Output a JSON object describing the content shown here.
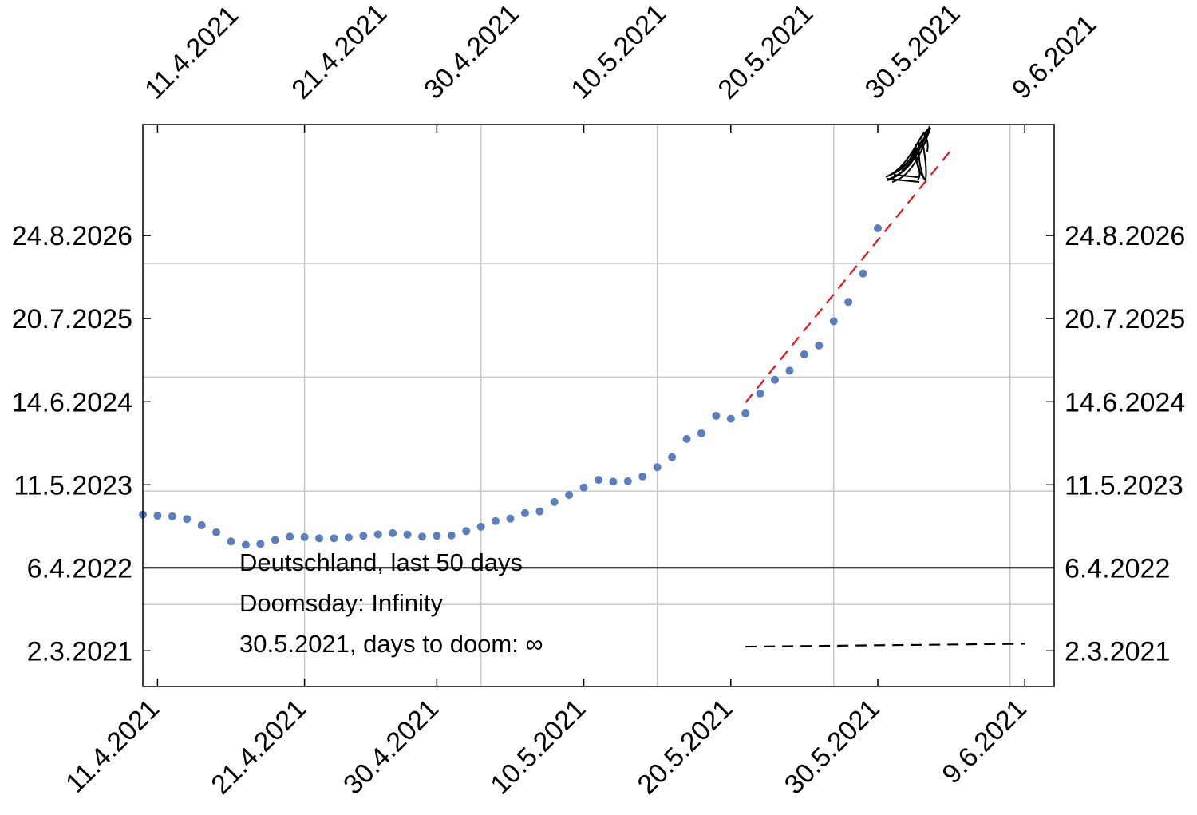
{
  "chart_data": {
    "type": "scatter",
    "title": "",
    "xlabel": "",
    "ylabel": "",
    "x_axis": {
      "min": "2021-04-10",
      "max": "2021-06-11",
      "ticks": [
        {
          "date": "2021-04-11",
          "label": "11.4.2021"
        },
        {
          "date": "2021-04-21",
          "label": "21.4.2021"
        },
        {
          "date": "2021-04-30",
          "label": "30.4.2021"
        },
        {
          "date": "2021-05-10",
          "label": "10.5.2021"
        },
        {
          "date": "2021-05-20",
          "label": "20.5.2021"
        },
        {
          "date": "2021-05-30",
          "label": "30.5.2021"
        },
        {
          "date": "2021-06-09",
          "label": "9.6.2021"
        }
      ]
    },
    "y_axis": {
      "min": "2020-09-11",
      "max": "2028-02-10",
      "ticks": [
        {
          "date": "2021-03-02",
          "label": "2.3.2021"
        },
        {
          "date": "2022-04-06",
          "label": "6.4.2022"
        },
        {
          "date": "2023-05-11",
          "label": "11.5.2023"
        },
        {
          "date": "2024-06-14",
          "label": "14.6.2024"
        },
        {
          "date": "2025-07-20",
          "label": "20.7.2025"
        },
        {
          "date": "2026-08-24",
          "label": "24.8.2026"
        }
      ]
    },
    "grid": true,
    "series": [
      {
        "type": "scatter",
        "color": "#5b7fbd",
        "points": [
          {
            "x": "2021-04-10",
            "y": "2022-12-18"
          },
          {
            "x": "2021-04-11",
            "y": "2022-12-13"
          },
          {
            "x": "2021-04-12",
            "y": "2022-12-10"
          },
          {
            "x": "2021-04-13",
            "y": "2022-11-27"
          },
          {
            "x": "2021-04-14",
            "y": "2022-10-28"
          },
          {
            "x": "2021-04-15",
            "y": "2022-09-24"
          },
          {
            "x": "2021-04-16",
            "y": "2022-08-11"
          },
          {
            "x": "2021-04-17",
            "y": "2022-07-26"
          },
          {
            "x": "2021-04-18",
            "y": "2022-07-30"
          },
          {
            "x": "2021-04-19",
            "y": "2022-08-18"
          },
          {
            "x": "2021-04-20",
            "y": "2022-09-03"
          },
          {
            "x": "2021-04-21",
            "y": "2022-09-01"
          },
          {
            "x": "2021-04-22",
            "y": "2022-08-26"
          },
          {
            "x": "2021-04-23",
            "y": "2022-08-26"
          },
          {
            "x": "2021-04-24",
            "y": "2022-08-30"
          },
          {
            "x": "2021-04-25",
            "y": "2022-09-07"
          },
          {
            "x": "2021-04-26",
            "y": "2022-09-14"
          },
          {
            "x": "2021-04-27",
            "y": "2022-09-20"
          },
          {
            "x": "2021-04-28",
            "y": "2022-09-13"
          },
          {
            "x": "2021-04-29",
            "y": "2022-09-03"
          },
          {
            "x": "2021-04-30",
            "y": "2022-09-07"
          },
          {
            "x": "2021-05-01",
            "y": "2022-09-09"
          },
          {
            "x": "2021-05-02",
            "y": "2022-09-30"
          },
          {
            "x": "2021-05-03",
            "y": "2022-10-21"
          },
          {
            "x": "2021-05-04",
            "y": "2022-11-17"
          },
          {
            "x": "2021-05-05",
            "y": "2022-11-29"
          },
          {
            "x": "2021-05-06",
            "y": "2022-12-25"
          },
          {
            "x": "2021-05-07",
            "y": "2023-01-03"
          },
          {
            "x": "2021-05-08",
            "y": "2023-02-17"
          },
          {
            "x": "2021-05-09",
            "y": "2023-03-23"
          },
          {
            "x": "2021-05-10",
            "y": "2023-04-28"
          },
          {
            "x": "2021-05-11",
            "y": "2023-06-04"
          },
          {
            "x": "2021-05-12",
            "y": "2023-05-26"
          },
          {
            "x": "2021-05-13",
            "y": "2023-05-28"
          },
          {
            "x": "2021-05-14",
            "y": "2023-06-20"
          },
          {
            "x": "2021-05-15",
            "y": "2023-08-04"
          },
          {
            "x": "2021-05-16",
            "y": "2023-09-21"
          },
          {
            "x": "2021-05-17",
            "y": "2023-12-18"
          },
          {
            "x": "2021-05-18",
            "y": "2024-01-14"
          },
          {
            "x": "2021-05-19",
            "y": "2024-04-07"
          },
          {
            "x": "2021-05-20",
            "y": "2024-03-24"
          },
          {
            "x": "2021-05-21",
            "y": "2024-04-19"
          },
          {
            "x": "2021-05-22",
            "y": "2024-07-24"
          },
          {
            "x": "2021-05-23",
            "y": "2024-09-28"
          },
          {
            "x": "2021-05-24",
            "y": "2024-11-11"
          },
          {
            "x": "2021-05-25",
            "y": "2025-01-28"
          },
          {
            "x": "2021-05-26",
            "y": "2025-03-12"
          },
          {
            "x": "2021-05-27",
            "y": "2025-07-07"
          },
          {
            "x": "2021-05-28",
            "y": "2025-10-08"
          },
          {
            "x": "2021-05-29",
            "y": "2026-02-22"
          },
          {
            "x": "2021-05-30",
            "y": "2026-09-28"
          }
        ]
      },
      {
        "type": "line",
        "style": "dashed",
        "color": "#e8141b",
        "points": [
          {
            "x": "2021-05-21",
            "y": "2024-06-10"
          },
          {
            "x": "2021-06-04",
            "y": "2027-10-11"
          }
        ]
      },
      {
        "type": "line",
        "style": "dashed",
        "color": "#000000",
        "points": [
          {
            "x": "2021-05-21",
            "y": "2021-03-22"
          },
          {
            "x": "2021-06-09",
            "y": "2021-04-05"
          }
        ]
      }
    ],
    "reference_line": {
      "y": "2022-04-06",
      "color": "#000000"
    },
    "annotations": [
      "Deutschland, last 50 days",
      "Doomsday: Infinity",
      "30.5.2021, days to doom: ∞"
    ]
  }
}
